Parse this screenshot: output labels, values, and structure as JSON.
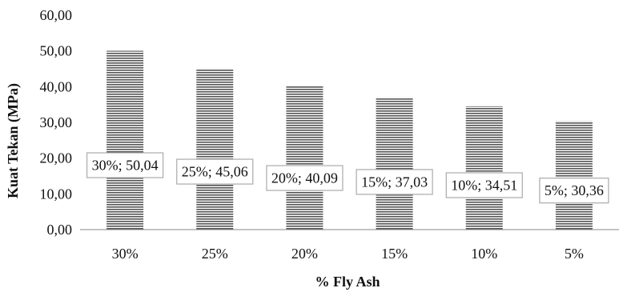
{
  "chart_data": {
    "type": "bar",
    "title": "",
    "xlabel": "% Fly Ash",
    "ylabel": "Kuat Tekan (MPa)",
    "categories": [
      "30%",
      "25%",
      "20%",
      "15%",
      "10%",
      "5%"
    ],
    "values": [
      50.04,
      45.06,
      40.09,
      37.03,
      34.51,
      30.36
    ],
    "data_labels": [
      "30%; 50,04",
      "25%; 45,06",
      "20%; 40,09",
      "15%; 37,03",
      "10%; 34,51",
      "5%; 30,36"
    ],
    "ylim": [
      0,
      60
    ],
    "yticks": [
      "0,00",
      "10,00",
      "20,00",
      "30,00",
      "40,00",
      "50,00",
      "60,00"
    ],
    "grid": false,
    "legend": "none",
    "bar_pattern": "horizontal-stripes",
    "colors": {
      "bar_stripe": "#555555",
      "bar_gap": "#ffffff",
      "axis": "#888888",
      "label_border": "#aaaaaa"
    }
  }
}
